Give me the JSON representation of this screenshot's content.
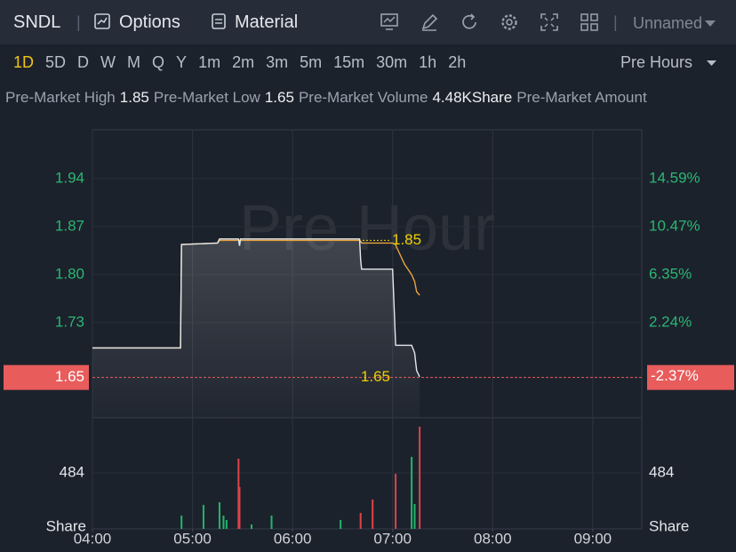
{
  "toolbar": {
    "symbol": "SNDL",
    "options": "Options",
    "material": "Material",
    "layout": "Unnamed"
  },
  "timeframes": {
    "items": [
      "1D",
      "5D",
      "D",
      "W",
      "M",
      "Q",
      "Y",
      "1m",
      "2m",
      "3m",
      "5m",
      "15m",
      "30m",
      "1h",
      "2h"
    ],
    "active": 0,
    "session": "Pre Hours"
  },
  "stats": [
    {
      "label": "Pre-Market High",
      "value": "1.85"
    },
    {
      "label": "Pre-Market Low",
      "value": "1.65"
    },
    {
      "label": "Pre-Market Volume",
      "value": "4.48KShare"
    },
    {
      "label": "Pre-Market Amount"
    }
  ],
  "chart_data": [
    {
      "type": "line",
      "watermark": "Pre Hour",
      "x": [
        4.0,
        4.88,
        4.89,
        5.25,
        5.27,
        5.46,
        5.47,
        5.48,
        6.67,
        6.68,
        6.69,
        7.0,
        7.03,
        7.04,
        7.12,
        7.19,
        7.22,
        7.24,
        7.27
      ],
      "series": [
        {
          "color": "#e6e8ec",
          "values": [
            1.693,
            1.693,
            1.844,
            1.846,
            1.852,
            1.852,
            1.842,
            1.852,
            1.852,
            1.822,
            1.808,
            1.808,
            1.697,
            1.697,
            1.697,
            1.697,
            1.686,
            1.66,
            1.651
          ]
        },
        {
          "color": "#e8a33d",
          "values": [
            1.693,
            1.693,
            1.844,
            1.846,
            1.85,
            1.85,
            1.85,
            1.85,
            1.85,
            1.849,
            1.846,
            1.846,
            1.844,
            1.84,
            1.815,
            1.8,
            1.79,
            1.775,
            1.77
          ]
        }
      ],
      "xlim": [
        4,
        9.49
      ],
      "xticks": [
        4,
        5,
        6,
        7,
        8,
        9
      ],
      "ylim": [
        1.5912,
        2.0113
      ],
      "yticks": [
        1.94,
        1.87,
        {
          "value": 1.8,
          "label": "1.80"
        },
        1.73
      ],
      "y2lim": [
        -5.92,
        18.79
      ],
      "y2ticks": [
        {
          "value": 14.59,
          "label": "14.59%"
        },
        {
          "value": 10.47,
          "label": "10.47%"
        },
        {
          "value": 6.35,
          "label": "6.35%"
        },
        {
          "value": 2.24,
          "label": "2.24%"
        }
      ],
      "high": 1.85,
      "low": 1.65,
      "last_price": 1.65,
      "last_change": {
        "value": -2.37,
        "label": "-2.37%"
      },
      "grid": true
    },
    {
      "type": "bar",
      "y_label": "Share",
      "x": [
        4.89,
        5.11,
        5.27,
        5.31,
        5.34,
        5.46,
        5.47,
        5.59,
        5.79,
        6.48,
        6.68,
        6.8,
        7.03,
        7.19,
        7.22,
        7.27
      ],
      "values": [
        115,
        207,
        230,
        115,
        77,
        607,
        361,
        38,
        115,
        77,
        138,
        254,
        476,
        622,
        215,
        883
      ],
      "colors": [
        "#22b56c",
        "#22b56c",
        "#22b56c",
        "#22b56c",
        "#22b56c",
        "#e0424a",
        "#e0424a",
        "#22b56c",
        "#22b56c",
        "#22b56c",
        "#e0424a",
        "#e0424a",
        "#e0424a",
        "#22b56c",
        "#22b56c",
        "#e0424a"
      ],
      "xlim": [
        4,
        9.49
      ],
      "xticks": [
        {
          "value": 4,
          "label": "04:00"
        },
        {
          "value": 5,
          "label": "05:00"
        },
        {
          "value": 6,
          "label": "06:00"
        },
        {
          "value": 7,
          "label": "07:00"
        },
        {
          "value": 8,
          "label": "08:00"
        },
        {
          "value": 9,
          "label": "09:00"
        }
      ],
      "ylim": [
        0,
        960
      ],
      "yticks": [
        484
      ],
      "grid": true
    }
  ]
}
